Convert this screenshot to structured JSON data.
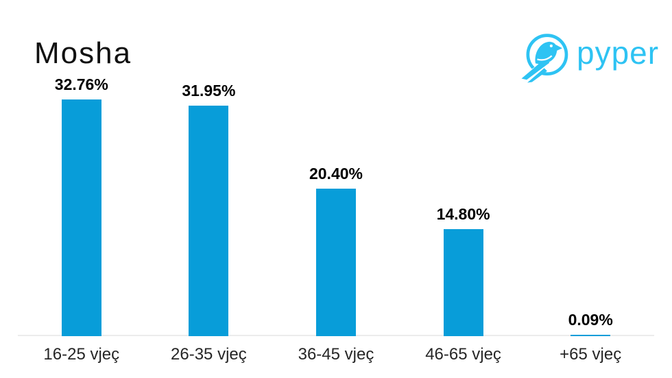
{
  "page": {
    "background": "#ffffff"
  },
  "header": {
    "title": "Mosha",
    "logo": {
      "wordmark": "pyper",
      "icon": "bird-in-circle",
      "color": "#2ec3f3"
    }
  },
  "chart_data": {
    "type": "bar",
    "title": "Mosha",
    "categories": [
      "16-25 vjeç",
      "26-35 vjeç",
      "36-45 vjeç",
      "46-65 vjeç",
      "+65 vjeç"
    ],
    "values": [
      32.76,
      31.95,
      20.4,
      14.8,
      0.09
    ],
    "value_labels": [
      "32.76%",
      "31.95%",
      "20.40%",
      "14.80%",
      "0.09%"
    ],
    "xlabel": "",
    "ylabel": "",
    "ylim": [
      0,
      35
    ],
    "grid": false,
    "legend": "none",
    "bar_color": "#089dd9",
    "axis_line_color": "#ececec",
    "label_position": "above-bar"
  }
}
